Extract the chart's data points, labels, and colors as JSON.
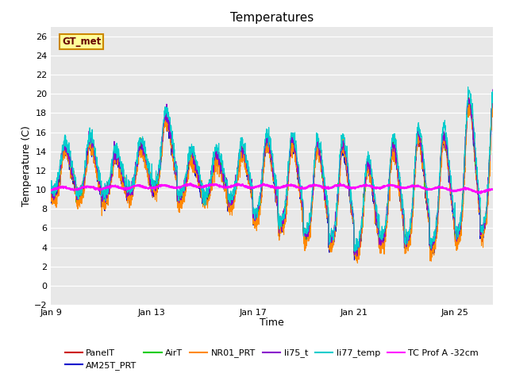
{
  "title": "Temperatures",
  "xlabel": "Time",
  "ylabel": "Temperature (C)",
  "ylim": [
    -2,
    27
  ],
  "yticks": [
    -2,
    0,
    2,
    4,
    6,
    8,
    10,
    12,
    14,
    16,
    18,
    20,
    22,
    24,
    26
  ],
  "xtick_labels": [
    "Jan 9",
    "Jan 13",
    "Jan 17",
    "Jan 21",
    "Jan 25"
  ],
  "xtick_positions": [
    0,
    4,
    8,
    12,
    16
  ],
  "xlim": [
    0,
    17.5
  ],
  "plot_bg_color": "#e8e8e8",
  "series_colors": {
    "PanelT": "#cc0000",
    "AM25T_PRT": "#0000cc",
    "AirT": "#00cc00",
    "NR01_PRT": "#ff8800",
    "li75_t": "#8800cc",
    "li77_temp": "#00cccc",
    "TC Prof A -32cm": "#ff00ff"
  },
  "gt_met_box": {
    "text": "GT_met",
    "bg_color": "#ffff99",
    "border_color": "#cc8800",
    "text_color": "#660000"
  },
  "n_points": 2000,
  "x_start": 0,
  "x_end": 17.5,
  "figsize": [
    6.4,
    4.8
  ],
  "dpi": 100
}
